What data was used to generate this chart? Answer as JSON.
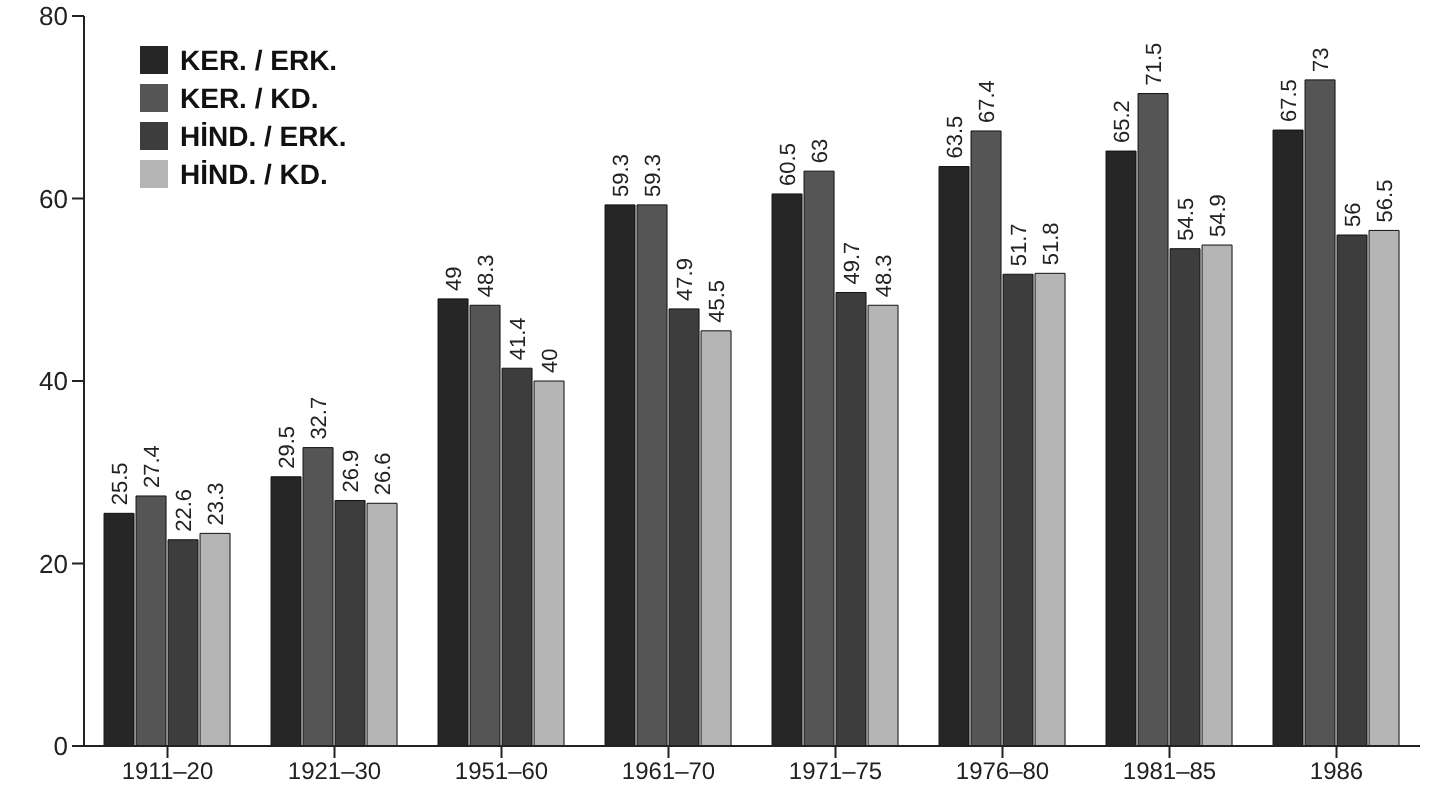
{
  "chart_data": {
    "type": "bar",
    "categories": [
      "1911–20",
      "1921–30",
      "1951–60",
      "1961–70",
      "1971–75",
      "1976–80",
      "1981–85",
      "1986"
    ],
    "series": [
      {
        "name": "KER. / ERK.",
        "color": "#262626",
        "values": [
          25.5,
          29.5,
          49,
          59.3,
          60.5,
          63.5,
          65.2,
          67.5
        ]
      },
      {
        "name": "KER. / KD.",
        "color": "#555555",
        "values": [
          27.4,
          32.7,
          48.3,
          59.3,
          63,
          67.4,
          71.5,
          73
        ]
      },
      {
        "name": "HİND. / ERK.",
        "color": "#3d3d3d",
        "values": [
          22.6,
          26.9,
          41.4,
          47.9,
          49.7,
          51.7,
          54.5,
          56
        ]
      },
      {
        "name": "HİND. / KD.",
        "color": "#b5b5b5",
        "values": [
          23.3,
          26.6,
          40,
          45.5,
          48.3,
          51.8,
          54.9,
          56.5
        ]
      }
    ],
    "ylim": [
      0,
      80
    ],
    "yticks": [
      0,
      20,
      40,
      60,
      80
    ],
    "grid": false,
    "legend": "top left",
    "data_labels": true
  }
}
